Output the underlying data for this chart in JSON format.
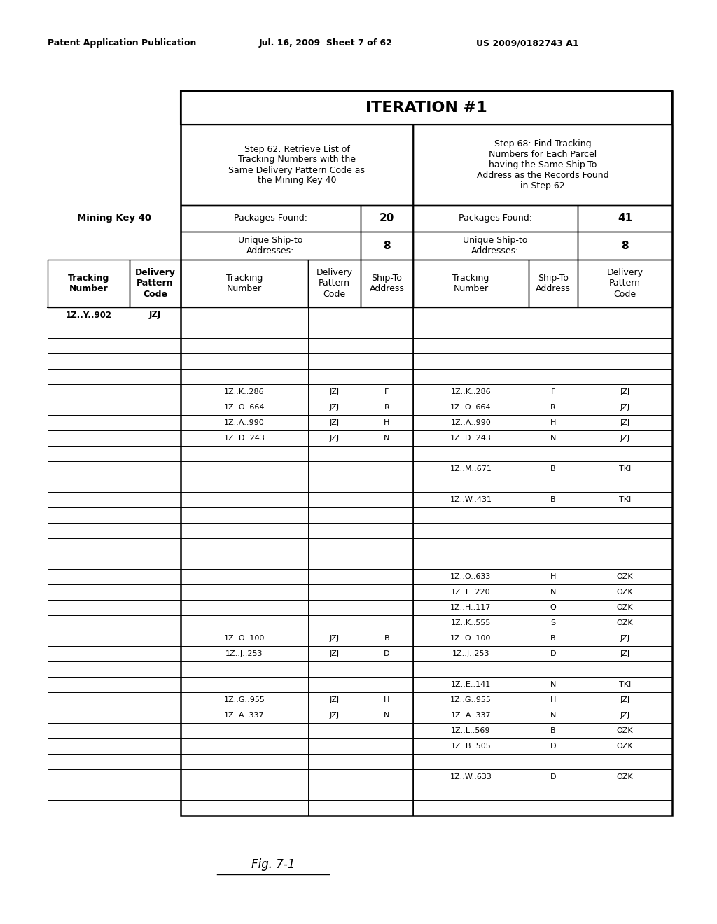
{
  "header_text_left": "Patent Application Publication",
  "header_text_mid": "Jul. 16, 2009  Sheet 7 of 62",
  "header_text_right": "US 2009/0182743 A1",
  "title": "ITERATION #1",
  "fig_label": "Fig. 7-1",
  "mining_key_label": "Mining Key 40",
  "left_section_header": "Step 62: Retrieve List of\nTracking Numbers with the\nSame Delivery Pattern Code as\nthe Mining Key 40",
  "right_section_header": "Step 68: Find Tracking\nNumbers for Each Parcel\nhaving the Same Ship-To\nAddress as the Records Found\nin Step 62",
  "packages_found_left_label": "Packages Found:",
  "packages_found_left_val": "20",
  "packages_found_right_label": "Packages Found:",
  "packages_found_right_val": "41",
  "unique_ship_left_label": "Unique Ship-to\nAddresses:",
  "unique_ship_left_val": "8",
  "unique_ship_right_label": "Unique Ship-to\nAddresses:",
  "unique_ship_right_val": "8",
  "outer_col1": "Tracking\nNumber",
  "outer_col2": "Delivery\nPattern\nCode",
  "inner_left_col1": "Tracking\nNumber",
  "inner_left_col2": "Delivery\nPattern\nCode",
  "inner_left_col3": "Ship-To\nAddress",
  "inner_right_col1": "Tracking\nNumber",
  "inner_right_col2": "Ship-To\nAddress",
  "inner_right_col3": "Delivery\nPattern\nCode",
  "mining_key_tracking": "1Z..Y..902",
  "mining_key_delivery": "JZJ",
  "rows": [
    [
      "",
      "",
      "",
      "",
      "",
      ""
    ],
    [
      "",
      "",
      "",
      "",
      "",
      ""
    ],
    [
      "",
      "",
      "",
      "",
      "",
      ""
    ],
    [
      "",
      "",
      "",
      "",
      "",
      ""
    ],
    [
      "",
      "",
      "",
      "",
      "",
      ""
    ],
    [
      "1Z..K..286",
      "JZJ",
      "F",
      "1Z..K..286",
      "F",
      "JZJ"
    ],
    [
      "1Z..O..664",
      "JZJ",
      "R",
      "1Z..O..664",
      "R",
      "JZJ"
    ],
    [
      "1Z..A..990",
      "JZJ",
      "H",
      "1Z..A..990",
      "H",
      "JZJ"
    ],
    [
      "1Z..D..243",
      "JZJ",
      "N",
      "1Z..D..243",
      "N",
      "JZJ"
    ],
    [
      "",
      "",
      "",
      "",
      "",
      ""
    ],
    [
      "",
      "",
      "",
      "1Z..M..671",
      "B",
      "TKI"
    ],
    [
      "",
      "",
      "",
      "",
      "",
      ""
    ],
    [
      "",
      "",
      "",
      "1Z..W..431",
      "B",
      "TKI"
    ],
    [
      "",
      "",
      "",
      "",
      "",
      ""
    ],
    [
      "",
      "",
      "",
      "",
      "",
      ""
    ],
    [
      "",
      "",
      "",
      "",
      "",
      ""
    ],
    [
      "",
      "",
      "",
      "",
      "",
      ""
    ],
    [
      "",
      "",
      "",
      "1Z..O..633",
      "H",
      "OZK"
    ],
    [
      "",
      "",
      "",
      "1Z..L..220",
      "N",
      "OZK"
    ],
    [
      "",
      "",
      "",
      "1Z..H..117",
      "Q",
      "OZK"
    ],
    [
      "",
      "",
      "",
      "1Z..K..555",
      "S",
      "OZK"
    ],
    [
      "1Z..O..100",
      "JZJ",
      "B",
      "1Z..O..100",
      "B",
      "JZJ"
    ],
    [
      "1Z..J..253",
      "JZJ",
      "D",
      "1Z..J..253",
      "D",
      "JZJ"
    ],
    [
      "",
      "",
      "",
      "",
      "",
      ""
    ],
    [
      "",
      "",
      "",
      "1Z..E..141",
      "N",
      "TKI"
    ],
    [
      "1Z..G..955",
      "JZJ",
      "H",
      "1Z..G..955",
      "H",
      "JZJ"
    ],
    [
      "1Z..A..337",
      "JZJ",
      "N",
      "1Z..A..337",
      "N",
      "JZJ"
    ],
    [
      "",
      "",
      "",
      "1Z..L..569",
      "B",
      "OZK"
    ],
    [
      "",
      "",
      "",
      "1Z..B..505",
      "D",
      "OZK"
    ],
    [
      "",
      "",
      "",
      "",
      "",
      ""
    ],
    [
      "",
      "",
      "",
      "1Z..W..633",
      "D",
      "OZK"
    ],
    [
      "",
      "",
      "",
      "",
      "",
      ""
    ],
    [
      "",
      "",
      "",
      "",
      "",
      ""
    ]
  ]
}
